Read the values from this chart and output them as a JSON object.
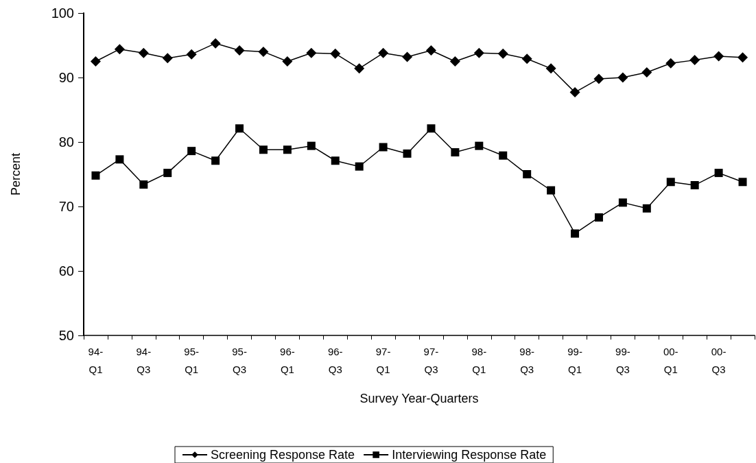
{
  "chart_data": {
    "type": "line",
    "xlabel": "Survey Year-Quarters",
    "ylabel": "Percent",
    "categories": [
      "94-\nQ1",
      null,
      "94-\nQ3",
      null,
      "95-\nQ1",
      null,
      "95-\nQ3",
      null,
      "96-\nQ1",
      null,
      "96-\nQ3",
      null,
      "97-\nQ1",
      null,
      "97-\nQ3",
      null,
      "98-\nQ1",
      null,
      "98-\nQ3",
      null,
      "99-\nQ1",
      null,
      "99-\nQ3",
      null,
      "00-\nQ1",
      null,
      "00-\nQ3",
      null
    ],
    "series": [
      {
        "name": "Screening Response Rate",
        "color": "#000000",
        "marker": "diamond",
        "values": [
          92.5,
          94.4,
          93.8,
          93.0,
          93.6,
          95.3,
          94.2,
          94.0,
          92.5,
          93.8,
          93.7,
          91.4,
          93.8,
          93.2,
          94.2,
          92.5,
          93.8,
          93.7,
          92.9,
          91.4,
          87.7,
          89.8,
          90.0,
          90.8,
          92.2,
          92.7,
          93.3,
          93.1
        ]
      },
      {
        "name": "Interviewing Response Rate",
        "color": "#000000",
        "marker": "square",
        "values": [
          74.8,
          77.3,
          73.4,
          75.2,
          78.6,
          77.1,
          82.1,
          78.8,
          78.8,
          79.4,
          77.1,
          76.2,
          79.2,
          78.2,
          82.1,
          78.4,
          79.4,
          77.9,
          75.0,
          72.5,
          65.8,
          68.3,
          70.6,
          69.7,
          73.8,
          73.3,
          75.2,
          73.8
        ]
      }
    ],
    "ylim": [
      50,
      100
    ],
    "yticks": [
      50,
      60,
      70,
      80,
      90,
      100
    ],
    "grid": false,
    "legend": "bottom",
    "line_style": "solid"
  }
}
